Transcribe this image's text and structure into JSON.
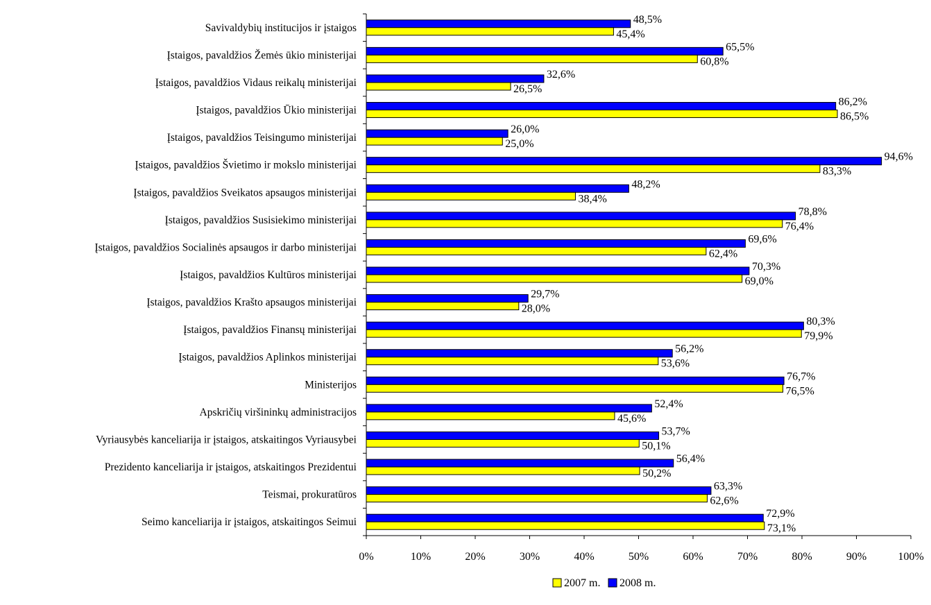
{
  "chart_data": {
    "type": "bar",
    "orientation": "horizontal",
    "categories": [
      "Savivaldybių institucijos ir įstaigos",
      "Įstaigos, pavaldžios Žemės ūkio ministerijai",
      "Įstaigos, pavaldžios Vidaus reikalų ministerijai",
      "Įstaigos, pavaldžios Ūkio ministerijai",
      "Įstaigos, pavaldžios Teisingumo ministerijai",
      "Įstaigos, pavaldžios Švietimo ir mokslo ministerijai",
      "Įstaigos, pavaldžios Sveikatos apsaugos ministerijai",
      "Įstaigos, pavaldžios Susisiekimo ministerijai",
      "Įstaigos, pavaldžios Socialinės apsaugos ir darbo ministerijai",
      "Įstaigos, pavaldžios Kultūros ministerijai",
      "Įstaigos, pavaldžios Krašto apsaugos ministerijai",
      "Įstaigos, pavaldžios Finansų ministerijai",
      "Įstaigos, pavaldžios Aplinkos ministerijai",
      "Ministerijos",
      "Apskričių viršininkų administracijos",
      "Vyriausybės kanceliarija ir įstaigos, atskaitingos Vyriausybei",
      "Prezidento kanceliarija ir įstaigos, atskaitingos Prezidentui",
      "Teismai, prokuratūros",
      "Seimo kanceliarija ir įstaigos, atskaitingos Seimui"
    ],
    "series": [
      {
        "name": "2008 m.",
        "color": "#0000FF",
        "values": [
          48.5,
          65.5,
          32.6,
          86.2,
          26.0,
          94.6,
          48.2,
          78.8,
          69.6,
          70.3,
          29.7,
          80.3,
          56.2,
          76.7,
          52.4,
          53.7,
          56.4,
          63.3,
          72.9
        ],
        "labels": [
          "48,5%",
          "65,5%",
          "32,6%",
          "86,2%",
          "26,0%",
          "94,6%",
          "48,2%",
          "78,8%",
          "69,6%",
          "70,3%",
          "29,7%",
          "80,3%",
          "56,2%",
          "76,7%",
          "52,4%",
          "53,7%",
          "56,4%",
          "63,3%",
          "72,9%"
        ]
      },
      {
        "name": "2007 m.",
        "color": "#FFFF00",
        "values": [
          45.4,
          60.8,
          26.5,
          86.5,
          25.0,
          83.3,
          38.4,
          76.4,
          62.4,
          69.0,
          28.0,
          79.9,
          53.6,
          76.5,
          45.6,
          50.1,
          50.2,
          62.6,
          73.1
        ],
        "labels": [
          "45,4%",
          "60,8%",
          "26,5%",
          "86,5%",
          "25,0%",
          "83,3%",
          "38,4%",
          "76,4%",
          "62,4%",
          "69,0%",
          "28,0%",
          "79,9%",
          "53,6%",
          "76,5%",
          "45,6%",
          "50,1%",
          "50,2%",
          "62,6%",
          "73,1%"
        ]
      }
    ],
    "xlim": [
      0,
      100
    ],
    "x_ticks": [
      "0%",
      "10%",
      "20%",
      "30%",
      "40%",
      "50%",
      "60%",
      "70%",
      "80%",
      "90%",
      "100%"
    ],
    "legend": {
      "position": "bottom",
      "order": [
        "2007 m.",
        "2008 m."
      ]
    },
    "grid": false
  }
}
